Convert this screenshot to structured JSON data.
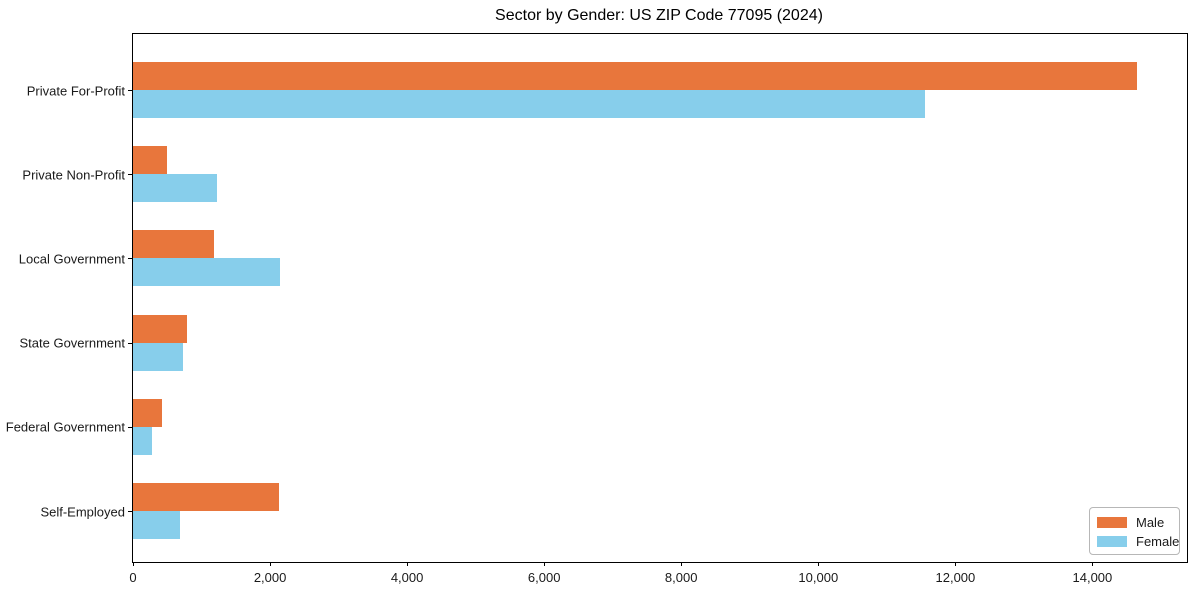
{
  "chart_data": {
    "type": "bar",
    "orientation": "horizontal",
    "title": "Sector by Gender: US ZIP Code 77095 (2024)",
    "categories": [
      "Private For-Profit",
      "Private Non-Profit",
      "Local Government",
      "State Government",
      "Federal Government",
      "Self-Employed"
    ],
    "series": [
      {
        "name": "Male",
        "color": "#e8763c",
        "values": [
          14650,
          500,
          1180,
          790,
          420,
          2130
        ]
      },
      {
        "name": "Female",
        "color": "#87ceeb",
        "values": [
          11550,
          1230,
          2140,
          730,
          280,
          680
        ]
      }
    ],
    "xlim": [
      0,
      15380
    ],
    "x_ticks": [
      0,
      2000,
      4000,
      6000,
      8000,
      10000,
      12000,
      14000
    ],
    "x_tick_labels": [
      "0",
      "2,000",
      "4,000",
      "6,000",
      "8,000",
      "10,000",
      "12,000",
      "14,000"
    ],
    "ylabel": "",
    "xlabel": "",
    "grid": false,
    "legend_position": "lower right",
    "spine_color": "#000000",
    "background_color": "#ffffff"
  }
}
